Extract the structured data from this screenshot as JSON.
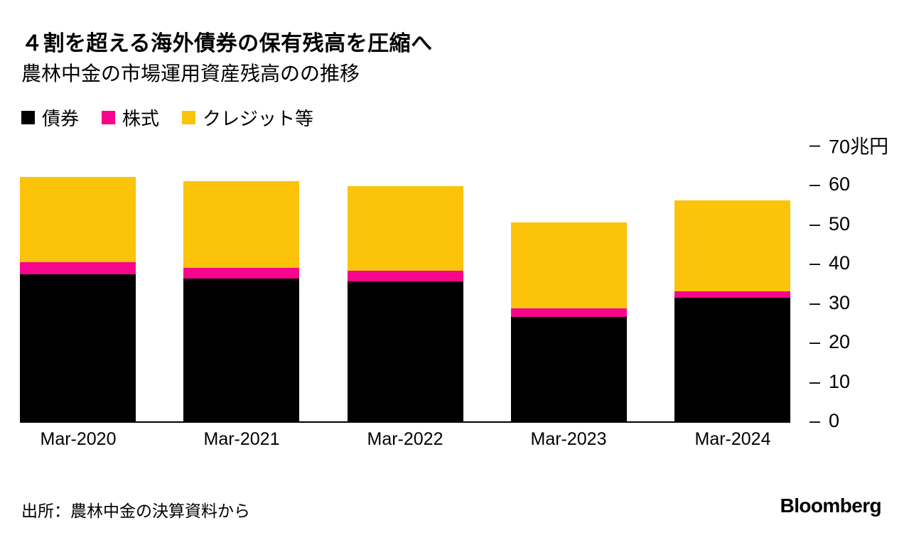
{
  "header": {
    "title": "４割を超える海外債券の保有残高を圧縮へ",
    "subtitle": "農林中金の市場運用資産残高のの推移"
  },
  "legend": [
    {
      "label": "債券",
      "color": "#000000"
    },
    {
      "label": "株式",
      "color": "#f7058c"
    },
    {
      "label": "クレジット等",
      "color": "#fcc30b"
    }
  ],
  "chart_data": {
    "type": "bar",
    "stacked": true,
    "title": "４割を超える海外債券の保有残高を圧縮へ",
    "subtitle": "農林中金の市場運用資産残高のの推移",
    "categories": [
      "Mar-2020",
      "Mar-2021",
      "Mar-2022",
      "Mar-2023",
      "Mar-2024"
    ],
    "series": [
      {
        "name": "債券",
        "color": "#000000",
        "values": [
          37.3,
          36.3,
          35.5,
          26.5,
          31.4
        ]
      },
      {
        "name": "株式",
        "color": "#f7058c",
        "values": [
          3.2,
          2.7,
          2.7,
          2.2,
          1.6
        ]
      },
      {
        "name": "クレジット等",
        "color": "#fcc30b",
        "values": [
          21.6,
          22.0,
          21.5,
          21.8,
          23.1
        ]
      }
    ],
    "ylabel": "兆円",
    "ylim": [
      0,
      70
    ],
    "y_ticks": [
      {
        "value": 70,
        "label": "70兆円"
      },
      {
        "value": 60,
        "label": "60"
      },
      {
        "value": 50,
        "label": "50"
      },
      {
        "value": 40,
        "label": "40"
      },
      {
        "value": 30,
        "label": "30"
      },
      {
        "value": 20,
        "label": "20"
      },
      {
        "value": 10,
        "label": "10"
      },
      {
        "value": 0,
        "label": "0"
      }
    ],
    "tick_marker": "–",
    "grid": false,
    "axis_side": "right",
    "legend_position": "top-left"
  },
  "footer": {
    "source": "出所：農林中金の決算資料から",
    "brand": "Bloomberg"
  }
}
